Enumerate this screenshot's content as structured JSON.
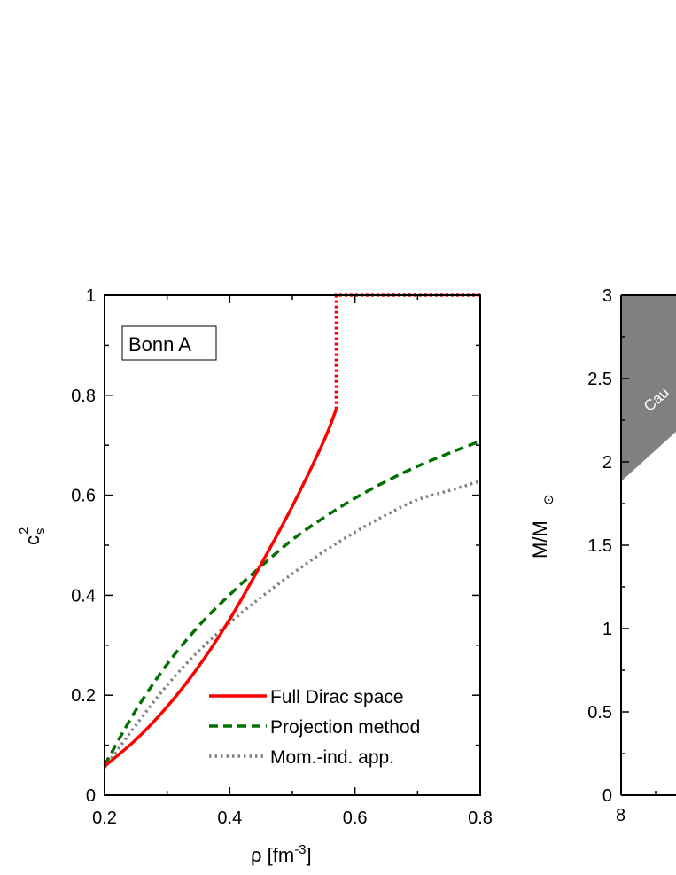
{
  "chart_data": [
    {
      "type": "line",
      "panel": "left",
      "annotation_box": "Bonn A",
      "xlabel_main": "ρ [fm",
      "xlabel_sup": "-3",
      "xlabel_end": "]",
      "ylabel_main": "c",
      "ylabel_sup": "2",
      "ylabel_sub": "s",
      "xlim": [
        0.2,
        0.8
      ],
      "ylim": [
        0,
        1
      ],
      "x_ticks": [
        0.2,
        0.4,
        0.6,
        0.8
      ],
      "x_tick_labels": [
        "0.2",
        "0.4",
        "0.6",
        "0.8"
      ],
      "y_ticks": [
        0,
        0.2,
        0.4,
        0.6,
        0.8,
        1
      ],
      "y_tick_labels": [
        "0",
        "0.2",
        "0.4",
        "0.6",
        "0.8",
        "1"
      ],
      "grid": false,
      "legend_position": "bottom-right",
      "series": [
        {
          "name": "Full Dirac space",
          "color": "#ff0000",
          "style": "solid",
          "x": [
            0.2,
            0.25,
            0.3,
            0.35,
            0.4,
            0.45,
            0.5,
            0.55,
            0.57
          ],
          "y": [
            0.058,
            0.111,
            0.177,
            0.257,
            0.352,
            0.462,
            0.578,
            0.708,
            0.772
          ]
        },
        {
          "name": "Projection method",
          "color": "#007000",
          "style": "dashed",
          "x": [
            0.2,
            0.25,
            0.3,
            0.35,
            0.4,
            0.45,
            0.5,
            0.55,
            0.6,
            0.65,
            0.7,
            0.75,
            0.8
          ],
          "y": [
            0.06,
            0.17,
            0.262,
            0.338,
            0.401,
            0.458,
            0.511,
            0.555,
            0.594,
            0.628,
            0.658,
            0.684,
            0.708
          ]
        },
        {
          "name": "Mom.-ind. app.",
          "color": "#808080",
          "style": "dotted",
          "x": [
            0.2,
            0.25,
            0.3,
            0.35,
            0.4,
            0.45,
            0.5,
            0.55,
            0.6,
            0.65,
            0.7,
            0.75,
            0.8
          ],
          "y": [
            0.055,
            0.14,
            0.22,
            0.288,
            0.345,
            0.396,
            0.443,
            0.487,
            0.526,
            0.561,
            0.591,
            0.609,
            0.628
          ]
        }
      ],
      "causality_line": {
        "color": "#ff0000",
        "style": "dotted",
        "x": [
          0.57,
          0.57,
          0.8
        ],
        "y": [
          0.772,
          1,
          1
        ]
      }
    },
    {
      "type": "line",
      "panel": "right (clipped)",
      "ylabel_main": "M/M",
      "ylabel_sub": "⊙",
      "y_ticks": [
        0,
        0.5,
        1,
        1.5,
        2,
        2.5,
        3
      ],
      "y_tick_labels": [
        "0",
        "0.5",
        "1",
        "1.5",
        "2",
        "2.5",
        "3"
      ],
      "x_tick_labels": [
        "8"
      ],
      "ylim": [
        0,
        3
      ],
      "region_label": "Cau",
      "region_color": "#808080"
    }
  ]
}
